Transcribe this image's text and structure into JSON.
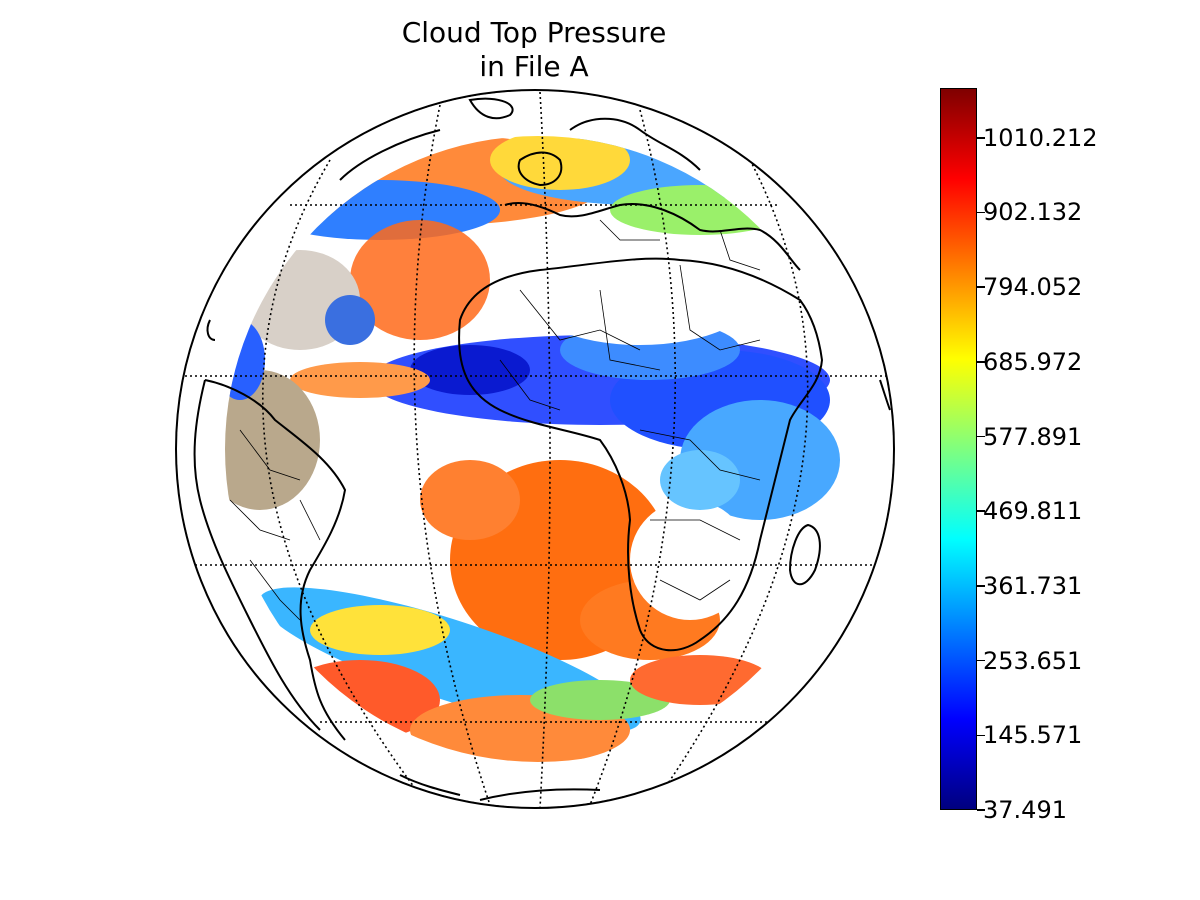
{
  "title": {
    "line1": "Cloud Top Pressure",
    "line2": "in File A"
  },
  "colorbar": {
    "colormap": "jet",
    "min": 37.491,
    "max": 1082.26,
    "ticks": [
      {
        "value": 1010.212,
        "label": "1010.212"
      },
      {
        "value": 902.132,
        "label": "902.132"
      },
      {
        "value": 794.052,
        "label": "794.052"
      },
      {
        "value": 685.972,
        "label": "685.972"
      },
      {
        "value": 577.891,
        "label": "577.891"
      },
      {
        "value": 469.811,
        "label": "469.811"
      },
      {
        "value": 361.731,
        "label": "361.731"
      },
      {
        "value": 253.651,
        "label": "253.651"
      },
      {
        "value": 145.571,
        "label": "145.571"
      },
      {
        "value": 37.491,
        "label": "37.491"
      }
    ],
    "colors": [
      "#00007f",
      "#0000ff",
      "#007fff",
      "#00ffff",
      "#7fff7f",
      "#ffff00",
      "#ff7f00",
      "#ff0000",
      "#7f0000"
    ]
  },
  "map": {
    "projection": "orthographic",
    "gridlines": "dotted",
    "coastlines": true,
    "country_borders": true
  }
}
